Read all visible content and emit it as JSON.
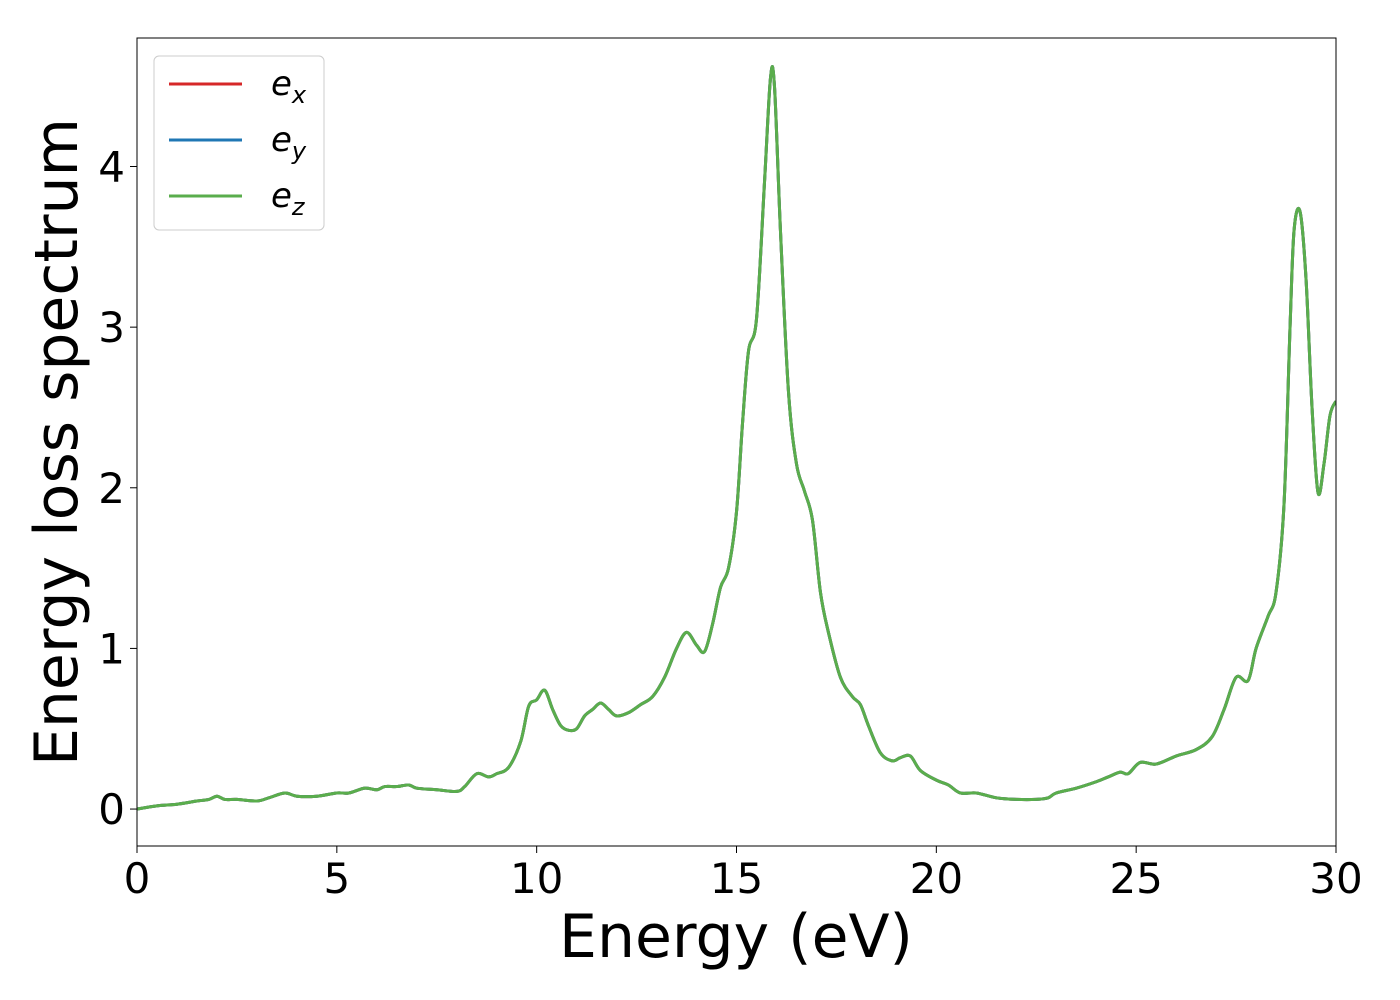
{
  "chart_data": {
    "type": "line",
    "xlabel": "Energy (eV)",
    "ylabel": "Energy loss spectrum",
    "xlim": [
      0,
      30
    ],
    "ylim": [
      -0.23,
      4.8
    ],
    "xticks": [
      0,
      5,
      10,
      15,
      20,
      25,
      30
    ],
    "yticks": [
      0,
      1,
      2,
      3,
      4
    ],
    "grid": false,
    "legend_position": "top-left",
    "series": [
      {
        "name": "e",
        "subscript": "x",
        "color": "#d62728"
      },
      {
        "name": "e",
        "subscript": "y",
        "color": "#1f77b4"
      },
      {
        "name": "e",
        "subscript": "z",
        "color": "#5aad4c"
      }
    ],
    "x": [
      0,
      0.5,
      1,
      1.5,
      1.8,
      2,
      2.2,
      2.5,
      3,
      3.3,
      3.7,
      4,
      4.5,
      5,
      5.3,
      5.7,
      6,
      6.2,
      6.5,
      6.8,
      7,
      7.5,
      8,
      8.2,
      8.5,
      8.8,
      9,
      9.3,
      9.6,
      9.8,
      10,
      10.2,
      10.4,
      10.6,
      10.8,
      11,
      11.2,
      11.4,
      11.6,
      11.8,
      12,
      12.3,
      12.6,
      12.9,
      13.2,
      13.5,
      13.75,
      14,
      14.2,
      14.4,
      14.6,
      14.8,
      15,
      15.15,
      15.3,
      15.5,
      15.7,
      15.85,
      15.95,
      16.1,
      16.3,
      16.5,
      16.7,
      16.9,
      17.1,
      17.3,
      17.6,
      17.9,
      18.1,
      18.3,
      18.6,
      18.9,
      19.1,
      19.35,
      19.6,
      20,
      20.3,
      20.6,
      21,
      21.5,
      22,
      22.5,
      22.8,
      23,
      23.5,
      24,
      24.3,
      24.6,
      24.8,
      25.1,
      25.5,
      26,
      26.5,
      26.9,
      27.2,
      27.5,
      27.8,
      28,
      28.3,
      28.5,
      28.7,
      28.85,
      28.95,
      29.1,
      29.25,
      29.4,
      29.55,
      29.7,
      29.85,
      30
    ],
    "y": [
      0,
      0.02,
      0.03,
      0.05,
      0.06,
      0.08,
      0.06,
      0.06,
      0.05,
      0.07,
      0.1,
      0.08,
      0.08,
      0.1,
      0.1,
      0.13,
      0.12,
      0.14,
      0.14,
      0.15,
      0.13,
      0.12,
      0.11,
      0.14,
      0.22,
      0.2,
      0.22,
      0.26,
      0.42,
      0.64,
      0.68,
      0.74,
      0.62,
      0.52,
      0.49,
      0.5,
      0.58,
      0.62,
      0.66,
      0.62,
      0.58,
      0.6,
      0.65,
      0.7,
      0.82,
      1.0,
      1.1,
      1.02,
      0.98,
      1.15,
      1.38,
      1.5,
      1.85,
      2.4,
      2.85,
      3.05,
      3.9,
      4.55,
      4.5,
      3.6,
      2.6,
      2.15,
      1.98,
      1.8,
      1.35,
      1.1,
      0.82,
      0.7,
      0.65,
      0.52,
      0.35,
      0.3,
      0.32,
      0.33,
      0.24,
      0.18,
      0.15,
      0.1,
      0.1,
      0.07,
      0.06,
      0.06,
      0.07,
      0.1,
      0.13,
      0.17,
      0.2,
      0.23,
      0.22,
      0.29,
      0.28,
      0.33,
      0.37,
      0.45,
      0.62,
      0.82,
      0.8,
      1.0,
      1.2,
      1.35,
      1.9,
      3.0,
      3.6,
      3.72,
      3.3,
      2.5,
      1.97,
      2.15,
      2.45,
      2.54
    ]
  }
}
